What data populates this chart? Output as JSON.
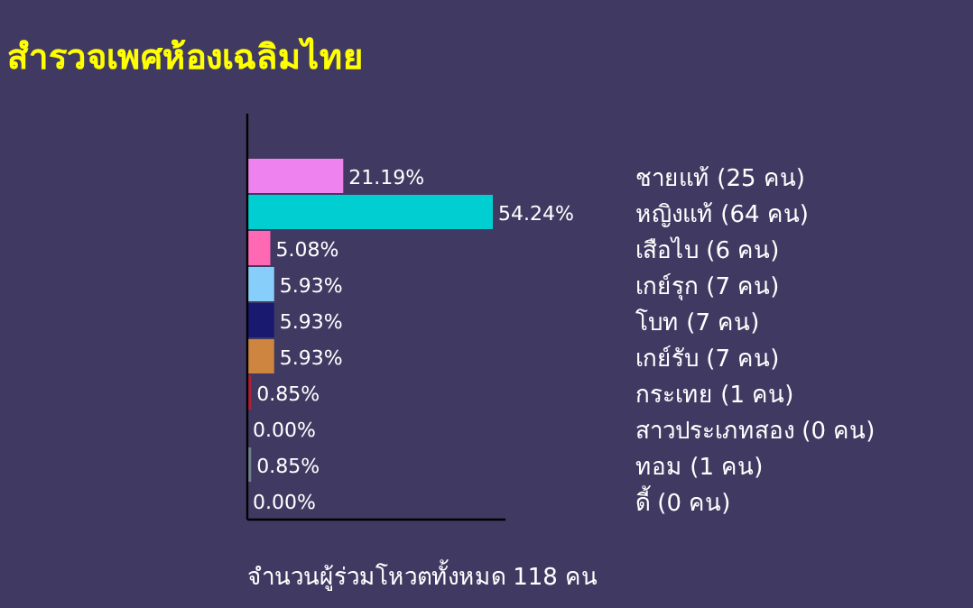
{
  "chart_data": {
    "type": "bar",
    "orientation": "horizontal",
    "title": "สำรวจเพศห้องเฉลิมไทย",
    "categories": [
      "ชายแท้ (25 คน)",
      "หญิงแท้ (64 คน)",
      "เสือไบ (6 คน)",
      "เกย์รุก (7 คน)",
      "โบท (7 คน)",
      "เกย์รับ (7 คน)",
      "กระเทย (1 คน)",
      "สาวประเภทสอง (0 คน)",
      "ทอม (1 คน)",
      "ดี้ (0 คน)"
    ],
    "values": [
      21.19,
      54.24,
      5.08,
      5.93,
      5.93,
      5.93,
      0.85,
      0.0,
      0.85,
      0.0
    ],
    "value_labels": [
      "21.19%",
      "54.24%",
      "5.08%",
      "5.93%",
      "5.93%",
      "5.93%",
      "0.85%",
      "0.00%",
      "0.85%",
      "0.00%"
    ],
    "colors": [
      "#ee82ee",
      "#00ced1",
      "#ff69b4",
      "#87cefa",
      "#191970",
      "#cd853f",
      "#b0203a",
      "#5b1a8c",
      "#708090",
      "#2ecc71"
    ],
    "annotations": [
      "จำนวนผู้ร่วมโหวตทั้งหมด 118 คน"
    ]
  }
}
